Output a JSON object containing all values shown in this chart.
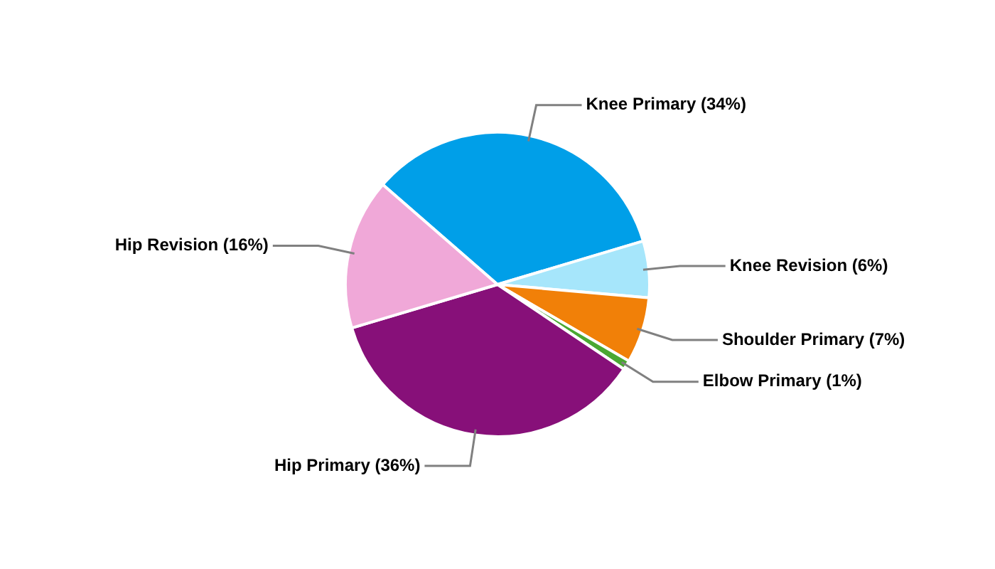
{
  "chart_data": {
    "type": "pie",
    "categories": [
      "Knee Primary (34%)",
      "Knee Revision (6%)",
      "Shoulder Primary (7%)",
      "Elbow Primary (1%)",
      "Hip Primary (36%)",
      "Hip Revision (16%)"
    ],
    "values": [
      34,
      6,
      7,
      1,
      36,
      16
    ],
    "colors": [
      "#009fe8",
      "#a6e6fb",
      "#f18008",
      "#4aa832",
      "#871079",
      "#f0a8d8"
    ],
    "legend": false
  }
}
